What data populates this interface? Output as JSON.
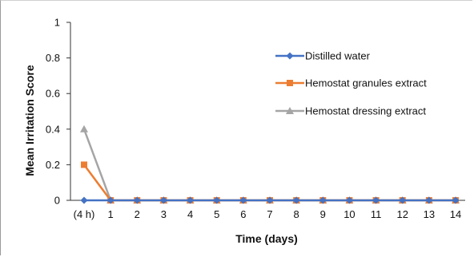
{
  "chart_data": {
    "type": "line",
    "categories": [
      "(4 h)",
      "1",
      "2",
      "3",
      "4",
      "5",
      "6",
      "7",
      "8",
      "9",
      "10",
      "11",
      "12",
      "13",
      "14"
    ],
    "xlabel": "Time (days)",
    "ylabel": "Mean Irritation Score",
    "ylim": [
      0,
      1
    ],
    "yticks": [
      "0",
      "0.2",
      "0.4",
      "0.6",
      "0.8",
      "1"
    ],
    "grid": false,
    "legend_position": "right",
    "series": [
      {
        "name": "Distilled water",
        "color": "#4472C4",
        "marker": "diamond",
        "values": [
          0,
          0,
          0,
          0,
          0,
          0,
          0,
          0,
          0,
          0,
          0,
          0,
          0,
          0,
          0
        ]
      },
      {
        "name": "Hemostat granules extract",
        "color": "#ED7D31",
        "marker": "square",
        "values": [
          0.2,
          0,
          0,
          0,
          0,
          0,
          0,
          0,
          0,
          0,
          0,
          0,
          0,
          0,
          0
        ]
      },
      {
        "name": "Hemostat dressing extract",
        "color": "#A5A5A5",
        "marker": "triangle",
        "values": [
          0.4,
          0,
          0,
          0,
          0,
          0,
          0,
          0,
          0,
          0,
          0,
          0,
          0,
          0,
          0
        ]
      }
    ]
  }
}
